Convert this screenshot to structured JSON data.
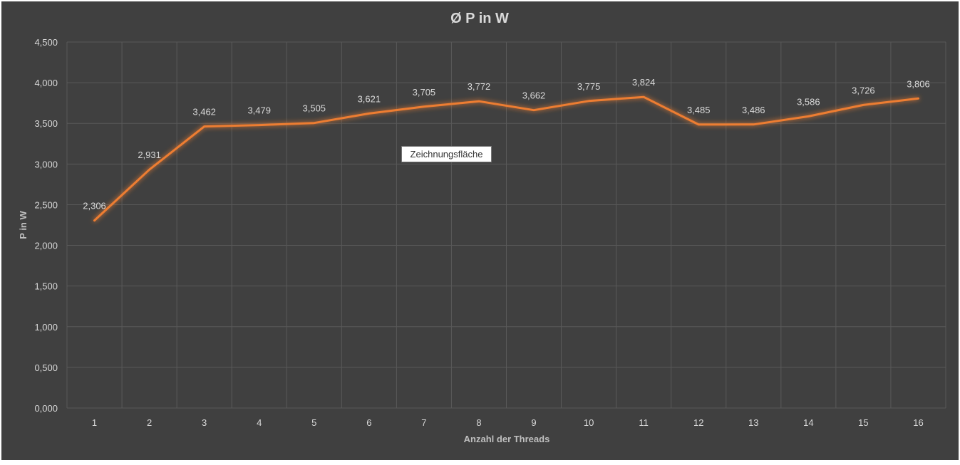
{
  "chart_data": {
    "type": "line",
    "title": "Ø P in W",
    "xlabel": "Anzahl der Threads",
    "ylabel": "P in W",
    "categories": [
      "1",
      "2",
      "3",
      "4",
      "5",
      "6",
      "7",
      "8",
      "9",
      "10",
      "11",
      "12",
      "13",
      "14",
      "15",
      "16"
    ],
    "series": [
      {
        "values": [
          2.306,
          2.931,
          3.462,
          3.479,
          3.505,
          3.621,
          3.705,
          3.772,
          3.662,
          3.775,
          3.824,
          3.485,
          3.486,
          3.586,
          3.726,
          3.806
        ],
        "color": "#ed7d31"
      }
    ],
    "data_labels": [
      "2,306",
      "2,931",
      "3,462",
      "3,479",
      "3,505",
      "3,621",
      "3,705",
      "3,772",
      "3,662",
      "3,775",
      "3,824",
      "3,485",
      "3,486",
      "3,586",
      "3,726",
      "3,806"
    ],
    "ylim": [
      0,
      4.5
    ],
    "yticks": [
      0,
      0.5,
      1,
      1.5,
      2,
      2.5,
      3,
      3.5,
      4,
      4.5
    ],
    "ytick_labels": [
      "0,000",
      "0,500",
      "1,000",
      "1,500",
      "2,000",
      "2,500",
      "3,000",
      "3,500",
      "4,000",
      "4,500"
    ],
    "grid": true,
    "legend": "none",
    "background": "#404040",
    "gridline_color": "#595959"
  },
  "tooltip": {
    "text": "Zeichnungsfläche"
  }
}
